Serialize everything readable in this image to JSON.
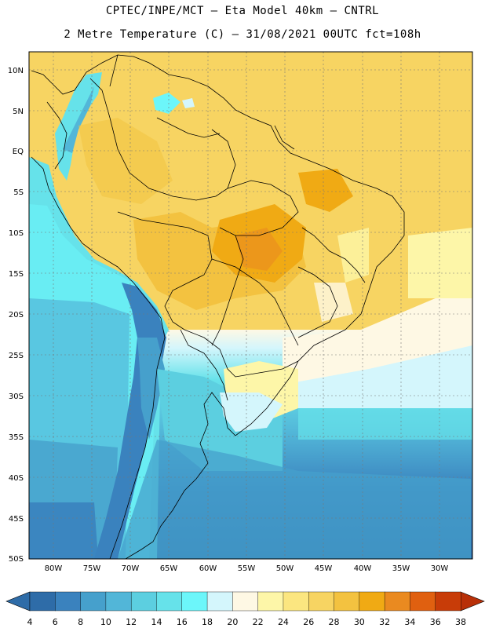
{
  "header": {
    "title_line1": "CPTEC/INPE/MCT –  Eta Model 40km – CNTRL",
    "title_line2": "2 Metre Temperature (C) – 31/08/2021 00UTC fct=108h"
  },
  "map": {
    "lat_labels": [
      "10N",
      "5N",
      "EQ",
      "5S",
      "10S",
      "15S",
      "20S",
      "25S",
      "30S",
      "35S",
      "40S",
      "45S",
      "50S"
    ],
    "lon_labels": [
      "80W",
      "75W",
      "70W",
      "65W",
      "60W",
      "55W",
      "50W",
      "45W",
      "40W",
      "35W",
      "30W"
    ],
    "lat_range": [
      -50,
      12
    ],
    "lon_range": [
      -83,
      -26
    ]
  },
  "colorbar": {
    "ticks": [
      "4",
      "6",
      "8",
      "10",
      "12",
      "14",
      "16",
      "18",
      "20",
      "22",
      "24",
      "26",
      "28",
      "30",
      "32",
      "34",
      "36",
      "38"
    ],
    "colors": [
      "#2e6ca8",
      "#3a82be",
      "#46a0cc",
      "#52b6d8",
      "#5ccfe0",
      "#66e2ea",
      "#6cf6fa",
      "#d4f6fc",
      "#fef8e4",
      "#fdf6a8",
      "#fbe680",
      "#f7d462",
      "#f3c240",
      "#f0aa14",
      "#ea8a20",
      "#e06010",
      "#c83c08"
    ]
  }
}
